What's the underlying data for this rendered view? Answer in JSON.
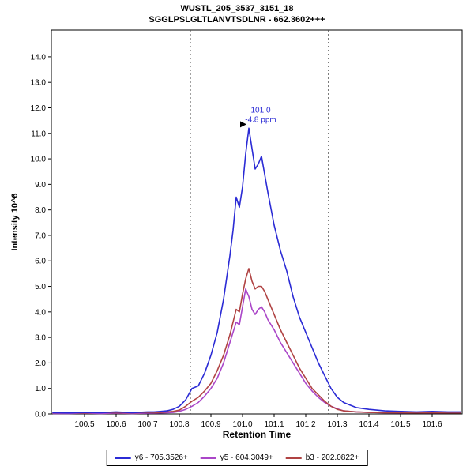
{
  "header": {
    "title_line1": "WUSTL_205_3537_3151_18",
    "title_line2": "SGGLPSLGLTLANVTSDLNR - 662.3602+++"
  },
  "chart_data": {
    "type": "line",
    "title": "WUSTL_205_3537_3151_18",
    "subtitle": "SGGLPSLGLTLANVTSDLNR - 662.3602+++",
    "xlabel": "Retention Time",
    "ylabel": "Intensity 10^6",
    "xlim": [
      100.395,
      101.695
    ],
    "ylim": [
      0,
      15.05
    ],
    "x_ticks": [
      100.5,
      100.6,
      100.7,
      100.8,
      100.9,
      101.0,
      101.1,
      101.2,
      101.3,
      101.4,
      101.5,
      101.6
    ],
    "y_ticks": [
      0,
      1,
      2,
      3,
      4,
      5,
      6,
      7,
      8,
      9,
      10,
      11,
      12,
      13,
      14
    ],
    "grid": false,
    "legend_position": "bottom",
    "integration_boundaries": [
      100.835,
      101.272
    ],
    "annotation": {
      "x": 101.02,
      "y": 11.2,
      "line1": "101.0",
      "line2": "-4.8 ppm",
      "color": "#2b2bd5"
    },
    "x": [
      100.4,
      100.45,
      100.5,
      100.55,
      100.6,
      100.65,
      100.7,
      100.72,
      100.74,
      100.76,
      100.78,
      100.8,
      100.82,
      100.84,
      100.86,
      100.88,
      100.9,
      100.92,
      100.94,
      100.96,
      100.97,
      100.98,
      100.99,
      101.0,
      101.01,
      101.02,
      101.03,
      101.04,
      101.05,
      101.06,
      101.07,
      101.08,
      101.1,
      101.12,
      101.14,
      101.16,
      101.18,
      101.2,
      101.22,
      101.24,
      101.26,
      101.28,
      101.3,
      101.32,
      101.34,
      101.36,
      101.4,
      101.45,
      101.5,
      101.55,
      101.6,
      101.65,
      101.69
    ],
    "series": [
      {
        "name": "y6 - 705.3526+",
        "color": "#2b2bd5",
        "values": [
          0.05,
          0.04,
          0.06,
          0.05,
          0.08,
          0.05,
          0.08,
          0.08,
          0.1,
          0.12,
          0.18,
          0.3,
          0.55,
          1.0,
          1.1,
          1.6,
          2.3,
          3.2,
          4.5,
          6.2,
          7.2,
          8.5,
          8.1,
          8.9,
          10.2,
          11.2,
          10.4,
          9.6,
          9.8,
          10.1,
          9.4,
          8.7,
          7.4,
          6.4,
          5.6,
          4.6,
          3.8,
          3.2,
          2.6,
          2.0,
          1.5,
          1.0,
          0.65,
          0.45,
          0.35,
          0.25,
          0.18,
          0.12,
          0.1,
          0.08,
          0.1,
          0.08,
          0.08
        ]
      },
      {
        "name": "y5 - 604.3049+",
        "color": "#aa46c8",
        "values": [
          0.02,
          0.02,
          0.03,
          0.02,
          0.03,
          0.02,
          0.03,
          0.03,
          0.04,
          0.05,
          0.06,
          0.1,
          0.18,
          0.3,
          0.45,
          0.7,
          1.0,
          1.4,
          2.0,
          2.8,
          3.2,
          3.6,
          3.5,
          4.2,
          4.9,
          4.6,
          4.1,
          3.9,
          4.1,
          4.2,
          4.0,
          3.7,
          3.3,
          2.8,
          2.4,
          2.0,
          1.6,
          1.2,
          0.9,
          0.65,
          0.45,
          0.3,
          0.2,
          0.12,
          0.1,
          0.08,
          0.06,
          0.05,
          0.04,
          0.05,
          0.04,
          0.04,
          0.04
        ]
      },
      {
        "name": "b3 - 202.0822+",
        "color": "#b04343",
        "values": [
          0.04,
          0.05,
          0.04,
          0.06,
          0.05,
          0.04,
          0.06,
          0.05,
          0.06,
          0.08,
          0.1,
          0.15,
          0.3,
          0.5,
          0.65,
          0.9,
          1.2,
          1.7,
          2.3,
          3.1,
          3.6,
          4.1,
          4.0,
          4.7,
          5.3,
          5.7,
          5.2,
          4.9,
          5.0,
          5.0,
          4.8,
          4.5,
          3.9,
          3.3,
          2.8,
          2.3,
          1.8,
          1.4,
          1.0,
          0.75,
          0.5,
          0.3,
          0.18,
          0.12,
          0.1,
          0.08,
          0.06,
          0.05,
          0.05,
          0.04,
          0.05,
          0.04,
          0.04
        ]
      }
    ]
  }
}
